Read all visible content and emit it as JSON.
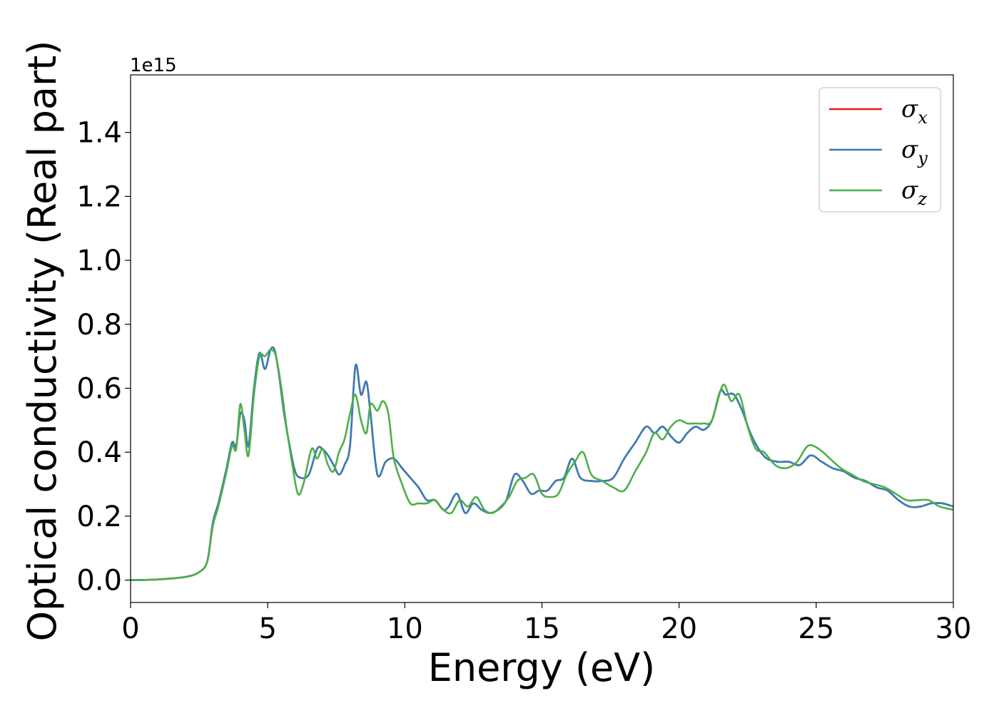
{
  "chart_data": {
    "type": "line",
    "xlabel": "Energy (eV)",
    "ylabel": "Optical conductivity (Real part)",
    "y_offset_label": "1e15",
    "xlim": [
      0,
      30
    ],
    "ylim": [
      -0.07,
      1.58
    ],
    "x_ticks": [
      0,
      5,
      10,
      15,
      20,
      25,
      30
    ],
    "x_tick_labels": [
      "0",
      "5",
      "10",
      "15",
      "20",
      "25",
      "30"
    ],
    "y_ticks": [
      0.0,
      0.2,
      0.4,
      0.6,
      0.8,
      1.0,
      1.2,
      1.4
    ],
    "y_tick_labels": [
      "0.0",
      "0.2",
      "0.4",
      "0.6",
      "0.8",
      "1.0",
      "1.2",
      "1.4"
    ],
    "grid": false,
    "legend_position": "top-right",
    "series": [
      {
        "name": "σ_x",
        "legend_symbol": "σ",
        "legend_sub": "x",
        "color": "#e41a1c",
        "x": [
          0,
          1,
          2,
          2.5,
          2.8,
          3,
          3.2,
          3.5,
          3.7,
          3.85,
          4,
          4.15,
          4.3,
          4.5,
          4.7,
          4.9,
          5.1,
          5.25,
          5.4,
          5.6,
          5.8,
          6,
          6.2,
          6.5,
          6.8,
          7.0,
          7.2,
          7.4,
          7.6,
          7.8,
          8.0,
          8.2,
          8.4,
          8.6,
          8.75,
          9.0,
          9.3,
          9.6,
          9.9,
          10.2,
          10.5,
          10.8,
          11.1,
          11.4,
          11.6,
          11.9,
          12.2,
          12.5,
          12.8,
          13.1,
          13.4,
          13.7,
          14.0,
          14.3,
          14.6,
          14.9,
          15.2,
          15.5,
          15.8,
          16.1,
          16.4,
          16.8,
          17.2,
          17.6,
          18.0,
          18.4,
          18.8,
          19.1,
          19.4,
          19.7,
          20.0,
          20.3,
          20.6,
          20.9,
          21.2,
          21.5,
          21.7,
          22.0,
          22.3,
          22.6,
          22.9,
          23.2,
          23.6,
          24.0,
          24.4,
          24.8,
          25.2,
          25.6,
          26.0,
          26.4,
          26.8,
          27.2,
          27.6,
          28.0,
          28.4,
          28.8,
          29.2,
          29.6,
          30
        ],
        "y": [
          0.0,
          0.002,
          0.01,
          0.025,
          0.06,
          0.18,
          0.24,
          0.35,
          0.43,
          0.42,
          0.52,
          0.5,
          0.42,
          0.6,
          0.71,
          0.66,
          0.72,
          0.72,
          0.65,
          0.52,
          0.42,
          0.34,
          0.32,
          0.33,
          0.41,
          0.41,
          0.39,
          0.36,
          0.33,
          0.36,
          0.42,
          0.67,
          0.58,
          0.62,
          0.52,
          0.33,
          0.37,
          0.38,
          0.35,
          0.32,
          0.29,
          0.25,
          0.25,
          0.22,
          0.23,
          0.27,
          0.21,
          0.24,
          0.22,
          0.21,
          0.22,
          0.25,
          0.33,
          0.31,
          0.27,
          0.28,
          0.28,
          0.31,
          0.32,
          0.38,
          0.32,
          0.31,
          0.31,
          0.32,
          0.38,
          0.43,
          0.48,
          0.46,
          0.48,
          0.45,
          0.43,
          0.46,
          0.48,
          0.47,
          0.5,
          0.59,
          0.58,
          0.58,
          0.53,
          0.46,
          0.41,
          0.38,
          0.37,
          0.37,
          0.36,
          0.39,
          0.37,
          0.35,
          0.34,
          0.32,
          0.31,
          0.29,
          0.28,
          0.25,
          0.23,
          0.23,
          0.24,
          0.24,
          0.23
        ]
      },
      {
        "name": "σ_y",
        "legend_symbol": "σ",
        "legend_sub": "y",
        "color": "#377eb8",
        "x": [
          0,
          1,
          2,
          2.5,
          2.8,
          3,
          3.2,
          3.5,
          3.7,
          3.85,
          4,
          4.15,
          4.3,
          4.5,
          4.7,
          4.9,
          5.1,
          5.25,
          5.4,
          5.6,
          5.8,
          6,
          6.2,
          6.5,
          6.8,
          7.0,
          7.2,
          7.4,
          7.6,
          7.8,
          8.0,
          8.2,
          8.4,
          8.6,
          8.75,
          9.0,
          9.3,
          9.6,
          9.9,
          10.2,
          10.5,
          10.8,
          11.1,
          11.4,
          11.6,
          11.9,
          12.2,
          12.5,
          12.8,
          13.1,
          13.4,
          13.7,
          14.0,
          14.3,
          14.6,
          14.9,
          15.2,
          15.5,
          15.8,
          16.1,
          16.4,
          16.8,
          17.2,
          17.6,
          18.0,
          18.4,
          18.8,
          19.1,
          19.4,
          19.7,
          20.0,
          20.3,
          20.6,
          20.9,
          21.2,
          21.5,
          21.7,
          22.0,
          22.3,
          22.6,
          22.9,
          23.2,
          23.6,
          24.0,
          24.4,
          24.8,
          25.2,
          25.6,
          26.0,
          26.4,
          26.8,
          27.2,
          27.6,
          28.0,
          28.4,
          28.8,
          29.2,
          29.6,
          30
        ],
        "y": [
          0.0,
          0.002,
          0.01,
          0.025,
          0.06,
          0.18,
          0.24,
          0.35,
          0.43,
          0.42,
          0.52,
          0.5,
          0.42,
          0.6,
          0.71,
          0.66,
          0.72,
          0.72,
          0.65,
          0.52,
          0.42,
          0.34,
          0.32,
          0.33,
          0.41,
          0.41,
          0.39,
          0.36,
          0.33,
          0.36,
          0.42,
          0.67,
          0.58,
          0.62,
          0.52,
          0.33,
          0.37,
          0.38,
          0.35,
          0.32,
          0.29,
          0.25,
          0.25,
          0.22,
          0.23,
          0.27,
          0.21,
          0.24,
          0.22,
          0.21,
          0.22,
          0.25,
          0.33,
          0.31,
          0.27,
          0.28,
          0.28,
          0.31,
          0.32,
          0.38,
          0.32,
          0.31,
          0.31,
          0.32,
          0.38,
          0.43,
          0.48,
          0.46,
          0.48,
          0.45,
          0.43,
          0.46,
          0.48,
          0.47,
          0.5,
          0.59,
          0.58,
          0.58,
          0.53,
          0.46,
          0.41,
          0.38,
          0.37,
          0.37,
          0.36,
          0.39,
          0.37,
          0.35,
          0.34,
          0.32,
          0.31,
          0.29,
          0.28,
          0.25,
          0.23,
          0.23,
          0.24,
          0.24,
          0.23
        ]
      },
      {
        "name": "σ_z",
        "legend_symbol": "σ",
        "legend_sub": "z",
        "color": "#4daf4a",
        "x": [
          0,
          1,
          2,
          2.5,
          2.8,
          3,
          3.2,
          3.5,
          3.7,
          3.85,
          4,
          4.15,
          4.3,
          4.5,
          4.7,
          4.9,
          5.1,
          5.3,
          5.5,
          5.7,
          5.9,
          6.1,
          6.3,
          6.6,
          6.8,
          7.0,
          7.2,
          7.4,
          7.6,
          7.8,
          8.0,
          8.2,
          8.4,
          8.6,
          8.75,
          9.0,
          9.2,
          9.4,
          9.6,
          9.9,
          10.2,
          10.5,
          10.8,
          11.1,
          11.4,
          11.7,
          12.0,
          12.3,
          12.6,
          12.9,
          13.2,
          13.5,
          13.8,
          14.1,
          14.4,
          14.7,
          15.0,
          15.3,
          15.6,
          15.9,
          16.2,
          16.5,
          16.8,
          17.2,
          17.6,
          18.0,
          18.4,
          18.8,
          19.1,
          19.4,
          19.7,
          20.0,
          20.3,
          20.6,
          20.9,
          21.2,
          21.6,
          21.9,
          22.2,
          22.5,
          22.8,
          23.1,
          23.5,
          23.9,
          24.3,
          24.7,
          25.1,
          25.5,
          25.9,
          26.3,
          26.7,
          27.1,
          27.5,
          27.9,
          28.3,
          28.7,
          29.1,
          29.5,
          30
        ],
        "y": [
          0.0,
          0.002,
          0.01,
          0.025,
          0.06,
          0.17,
          0.23,
          0.34,
          0.42,
          0.41,
          0.55,
          0.47,
          0.39,
          0.58,
          0.7,
          0.7,
          0.72,
          0.7,
          0.6,
          0.47,
          0.36,
          0.27,
          0.3,
          0.41,
          0.38,
          0.41,
          0.36,
          0.34,
          0.4,
          0.44,
          0.52,
          0.58,
          0.5,
          0.46,
          0.55,
          0.53,
          0.56,
          0.52,
          0.38,
          0.3,
          0.24,
          0.24,
          0.24,
          0.25,
          0.22,
          0.21,
          0.25,
          0.23,
          0.26,
          0.22,
          0.21,
          0.23,
          0.26,
          0.31,
          0.32,
          0.33,
          0.27,
          0.26,
          0.27,
          0.33,
          0.37,
          0.4,
          0.33,
          0.31,
          0.29,
          0.28,
          0.34,
          0.4,
          0.46,
          0.44,
          0.48,
          0.5,
          0.49,
          0.49,
          0.49,
          0.5,
          0.61,
          0.56,
          0.58,
          0.48,
          0.41,
          0.4,
          0.36,
          0.35,
          0.37,
          0.42,
          0.41,
          0.38,
          0.35,
          0.33,
          0.31,
          0.3,
          0.29,
          0.27,
          0.25,
          0.25,
          0.25,
          0.23,
          0.22
        ]
      }
    ]
  }
}
